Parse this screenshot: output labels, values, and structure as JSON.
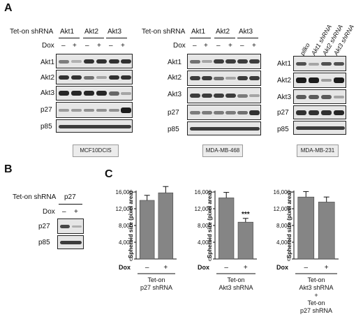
{
  "panel_labels": {
    "a": "A",
    "b": "B",
    "c": "C"
  },
  "panelA": {
    "groups": [
      {
        "header": "Tet-on shRNA",
        "lanes": [
          "Akt1",
          "Akt2",
          "Akt3"
        ],
        "dox_label": "Dox",
        "dox": [
          "–",
          "+",
          "–",
          "+",
          "–",
          "+"
        ],
        "rows": [
          "Akt1",
          "Akt2",
          "Akt3",
          "p27",
          "p85"
        ],
        "cell_line": "MCF10DCIS"
      },
      {
        "header": "Tet-on shRNA",
        "lanes": [
          "Akt1",
          "Akt2",
          "Akt3"
        ],
        "dox_label": "Dox",
        "dox": [
          "–",
          "+",
          "–",
          "+",
          "–",
          "+"
        ],
        "rows": [
          "Akt1",
          "Akt2",
          "Akt3",
          "p27",
          "p85"
        ],
        "cell_line": "MDA-MB-468"
      },
      {
        "lanes": [
          "pllko",
          "Akt1 shRNA",
          "Akt2 shRNA",
          "Akt3 shRNA"
        ],
        "rows": [
          "Akt1",
          "Akt2",
          "Akt3",
          "p27",
          "p85"
        ],
        "cell_line": "MDA-MB-231"
      }
    ]
  },
  "panelB": {
    "header": "Tet-on shRNA",
    "lane": "p27",
    "dox_label": "Dox",
    "dox": [
      "–",
      "+"
    ],
    "rows": [
      "p27",
      "p85"
    ]
  },
  "chart_data": [
    {
      "type": "bar",
      "ylabel": "Spheroid size (pixel area)",
      "ylim": [
        0,
        16000
      ],
      "yticks": [
        "0",
        "4,000",
        "8,000",
        "12,000",
        "16,000"
      ],
      "xlabel": "Dox",
      "categories": [
        "–",
        "+"
      ],
      "values": [
        14000,
        15800
      ],
      "errors": [
        1200,
        1500
      ],
      "condition": [
        "Tet-on",
        "p27 shRNA"
      ]
    },
    {
      "type": "bar",
      "ylabel": "Spheroid size (pixel area)",
      "ylim": [
        0,
        16000
      ],
      "yticks": [
        "0",
        "4,000",
        "8,000",
        "12,000",
        "16,000"
      ],
      "xlabel": "Dox",
      "categories": [
        "–",
        "+"
      ],
      "values": [
        14600,
        8800
      ],
      "errors": [
        1300,
        900
      ],
      "annotation": "***",
      "condition": [
        "Tet-on",
        "Akt3 shRNA"
      ]
    },
    {
      "type": "bar",
      "ylabel": "Spheroid size (pixel area)",
      "ylim": [
        0,
        16000
      ],
      "yticks": [
        "0",
        "4,000",
        "8,000",
        "12,000",
        "16,000"
      ],
      "xlabel": "Dox",
      "categories": [
        "–",
        "+"
      ],
      "values": [
        14800,
        13600
      ],
      "errors": [
        1300,
        1200
      ],
      "condition": [
        "Tet-on",
        "Akt3 shRNA",
        "+",
        "Tet-on",
        "p27 shRNA"
      ]
    }
  ]
}
